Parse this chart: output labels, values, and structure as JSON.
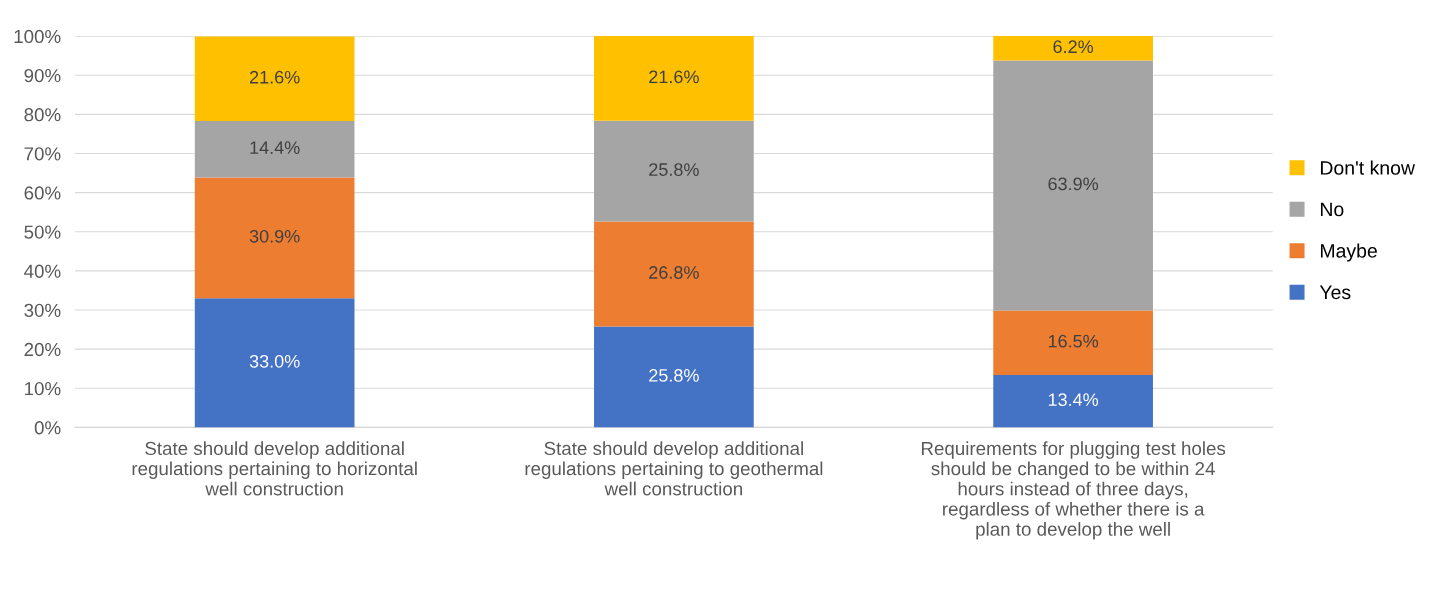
{
  "chart_data": {
    "type": "bar",
    "stacked": true,
    "categories": [
      "State should develop additional regulations pertaining to horizontal well construction",
      "State should develop additional regulations pertaining to geothermal well construction",
      "Requirements for plugging test holes should be changed to be within 24 hours instead of three days, regardless of whether there is a plan to develop the well"
    ],
    "series": [
      {
        "name": "Yes",
        "color": "#4472c4",
        "values": [
          33.0,
          25.8,
          13.4
        ],
        "value_labels": [
          "33.0%",
          "25.8%",
          "13.4%"
        ]
      },
      {
        "name": "Maybe",
        "color": "#ed7d31",
        "values": [
          30.9,
          26.8,
          16.5
        ],
        "value_labels": [
          "30.9%",
          "26.8%",
          "16.5%"
        ]
      },
      {
        "name": "No",
        "color": "#a5a5a5",
        "values": [
          14.4,
          25.8,
          63.9
        ],
        "value_labels": [
          "14.4%",
          "25.8%",
          "63.9%"
        ]
      },
      {
        "name": "Don't know",
        "color": "#ffc000",
        "values": [
          21.6,
          21.6,
          6.2
        ],
        "value_labels": [
          "21.6%",
          "21.6%",
          "6.2%"
        ]
      }
    ],
    "ylim": [
      0,
      100
    ],
    "yticks": [
      {
        "value": 0,
        "label": "0%"
      },
      {
        "value": 10,
        "label": "10%"
      },
      {
        "value": 20,
        "label": "20%"
      },
      {
        "value": 30,
        "label": "30%"
      },
      {
        "value": 40,
        "label": "40%"
      },
      {
        "value": 50,
        "label": "50%"
      },
      {
        "value": 60,
        "label": "60%"
      },
      {
        "value": 70,
        "label": "70%"
      },
      {
        "value": 80,
        "label": "80%"
      },
      {
        "value": 90,
        "label": "90%"
      },
      {
        "value": 100,
        "label": "100%"
      }
    ],
    "grid": "y",
    "legend": "right"
  }
}
